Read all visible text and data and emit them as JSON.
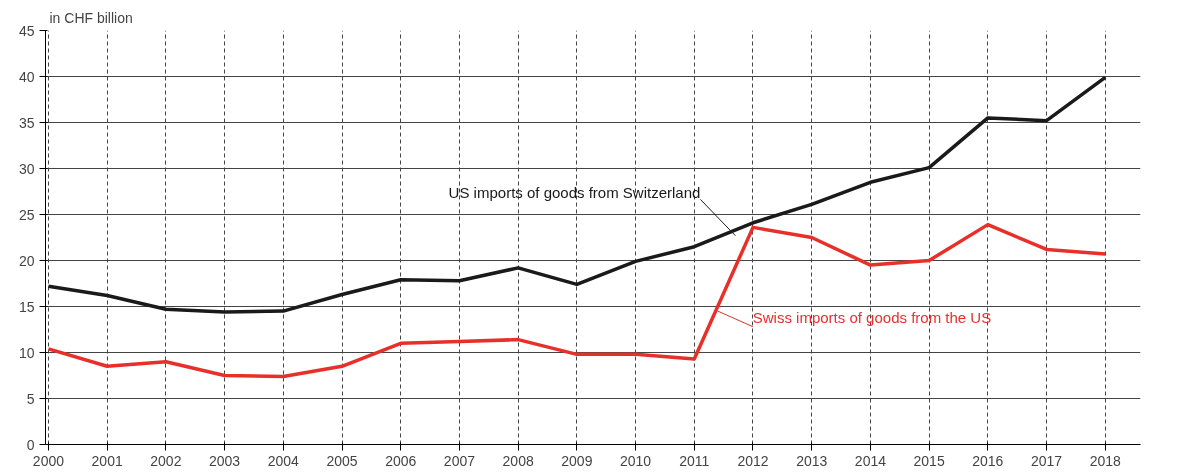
{
  "chart_data": {
    "type": "line",
    "ylabel": "in CHF billion",
    "x": [
      2000,
      2001,
      2002,
      2003,
      2004,
      2005,
      2006,
      2007,
      2008,
      2009,
      2010,
      2011,
      2012,
      2013,
      2014,
      2015,
      2016,
      2017,
      2018
    ],
    "xlim": [
      1999.95,
      2018.6
    ],
    "xticks": [
      2000,
      2001,
      2002,
      2003,
      2004,
      2005,
      2006,
      2007,
      2008,
      2009,
      2010,
      2011,
      2012,
      2013,
      2014,
      2015,
      2016,
      2017,
      2018
    ],
    "ylim": [
      0,
      45
    ],
    "yticks": [
      0,
      5,
      10,
      15,
      20,
      25,
      30,
      35,
      40,
      45
    ],
    "grid": true,
    "series": [
      {
        "color": "#1a1a1a",
        "values": [
          17.2,
          16.2,
          14.7,
          14.4,
          14.5,
          16.3,
          17.9,
          17.8,
          19.2,
          17.4,
          19.9,
          21.5,
          24.1,
          26.1,
          28.5,
          30.1,
          35.5,
          35.2,
          39.9
        ]
      },
      {
        "color": "#e8302a",
        "values": [
          10.4,
          8.5,
          9.0,
          7.5,
          7.4,
          8.5,
          11.0,
          11.2,
          11.4,
          9.8,
          9.8,
          9.3,
          23.6,
          22.5,
          19.5,
          20.0,
          23.9,
          21.2,
          20.7
        ]
      }
    ],
    "annotations": [
      {
        "text": "US imports of goods from Switzerland",
        "x": 2011.7,
        "y": 22.7
      },
      {
        "text": "Swiss imports of goods from the US",
        "x": 2011.4,
        "y": 14.5
      }
    ]
  }
}
